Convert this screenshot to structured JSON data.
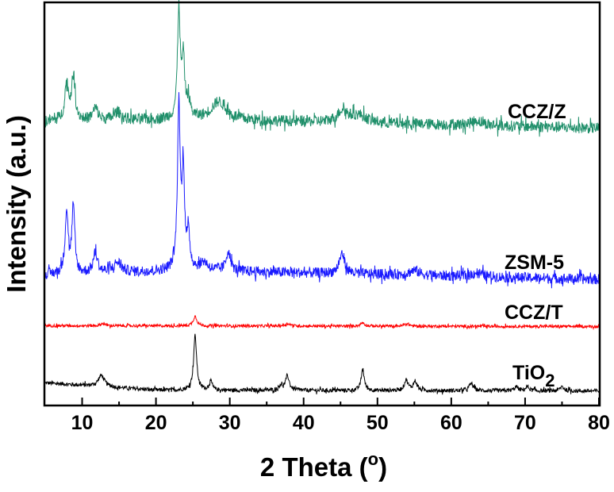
{
  "chart_data": {
    "type": "line",
    "xlabel": "2 Theta (",
    "xlabel_unit": "o",
    "xlabel_close": ")",
    "ylabel": "Intensity (a.u.)",
    "xlim": [
      5,
      80
    ],
    "ylim": [
      0,
      100
    ],
    "x_ticks": [
      10,
      20,
      30,
      40,
      50,
      60,
      70,
      80
    ],
    "x_minor_ticks": [
      15,
      25,
      35,
      45,
      55,
      65,
      75
    ],
    "y_ticks": [],
    "grid": false,
    "legend": "none (inline labels at right)",
    "series": [
      {
        "name": "TiO",
        "name_sub": "2",
        "color": "#000000",
        "baseline": [
          [
            5,
            5.6
          ],
          [
            20,
            3.8
          ],
          [
            80,
            3.6
          ]
        ],
        "noise": 0.5,
        "peaks": [
          [
            12.6,
            2.8,
            0.5
          ],
          [
            25.3,
            13.5,
            0.25
          ],
          [
            27.4,
            2.2,
            0.25
          ],
          [
            36.9,
            1.2,
            0.3
          ],
          [
            37.8,
            3.6,
            0.3
          ],
          [
            48.0,
            5.3,
            0.25
          ],
          [
            53.9,
            2.6,
            0.3
          ],
          [
            55.1,
            2.3,
            0.3
          ],
          [
            62.7,
            1.8,
            0.35
          ],
          [
            68.8,
            1.0,
            0.3
          ],
          [
            70.3,
            1.0,
            0.3
          ],
          [
            75.0,
            1.1,
            0.3
          ]
        ]
      },
      {
        "name": "CCZ/T",
        "color": "#ff0000",
        "baseline": [
          [
            5,
            19.8
          ],
          [
            80,
            19.6
          ]
        ],
        "noise": 0.35,
        "peaks": [
          [
            25.3,
            2.4,
            0.3
          ],
          [
            12.8,
            0.6,
            0.3
          ],
          [
            37.9,
            0.6,
            0.4
          ],
          [
            48.0,
            0.9,
            0.3
          ],
          [
            54.0,
            0.6,
            0.4
          ]
        ]
      },
      {
        "name": "ZSM-5",
        "color": "#1a1aff",
        "baseline": [
          [
            5,
            32.5
          ],
          [
            25,
            33.5
          ],
          [
            80,
            31.3
          ]
        ],
        "noise": 1.3,
        "peaks": [
          [
            7.9,
            15.5,
            0.25
          ],
          [
            8.8,
            16.5,
            0.22
          ],
          [
            11.8,
            5.0,
            0.35
          ],
          [
            14.8,
            2.5,
            0.6
          ],
          [
            23.1,
            40.5,
            0.22
          ],
          [
            23.7,
            24.0,
            0.2
          ],
          [
            24.4,
            8.0,
            0.25
          ],
          [
            26.5,
            2.0,
            0.6
          ],
          [
            29.8,
            5.0,
            0.35
          ],
          [
            45.2,
            5.0,
            0.45
          ],
          [
            55.0,
            1.2,
            0.8
          ],
          [
            63.5,
            1.0,
            0.8
          ]
        ]
      },
      {
        "name": "CCZ/Z",
        "color": "#1f8f6a",
        "baseline": [
          [
            5,
            70.5
          ],
          [
            25,
            71.0
          ],
          [
            80,
            68.8
          ]
        ],
        "noise": 1.4,
        "peaks": [
          [
            7.9,
            9.0,
            0.3
          ],
          [
            8.8,
            10.5,
            0.3
          ],
          [
            11.8,
            3.0,
            0.4
          ],
          [
            14.8,
            2.0,
            0.6
          ],
          [
            23.1,
            27.0,
            0.22
          ],
          [
            23.7,
            14.0,
            0.22
          ],
          [
            24.4,
            4.0,
            0.3
          ],
          [
            28.5,
            4.5,
            1.2
          ],
          [
            45.3,
            3.0,
            0.8
          ],
          [
            47.5,
            1.8,
            1.2
          ],
          [
            63.5,
            1.2,
            1.0
          ]
        ]
      }
    ]
  }
}
